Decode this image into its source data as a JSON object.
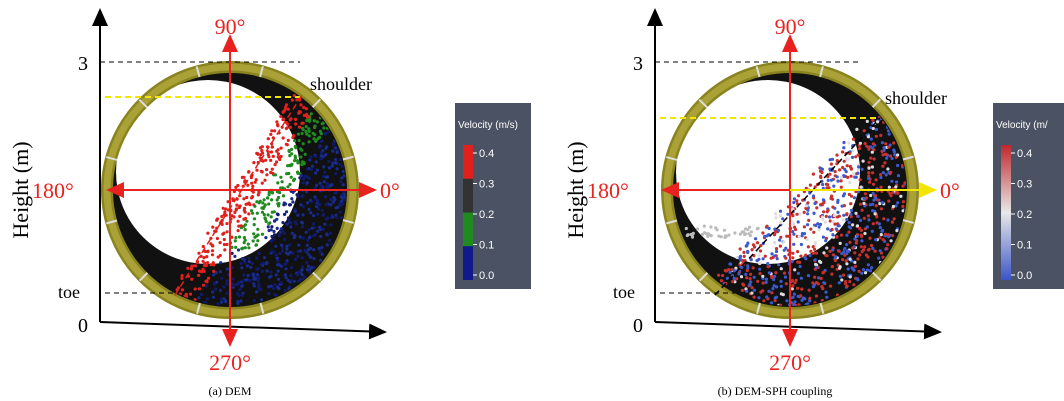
{
  "panels": [
    {
      "caption": "(a) DEM",
      "y_axis_label": "Height (m)",
      "angle_labels": {
        "top": "90°",
        "left": "180°",
        "right": "0°",
        "bottom": "270°"
      },
      "height_ticks": [
        "3",
        "0"
      ],
      "annotations": [
        "shoulder",
        "toe"
      ],
      "colorbar": {
        "title": "Velocity (m/s)",
        "ticks": [
          "0.4",
          "0.3",
          "0.2",
          "0.1",
          "0.0"
        ]
      }
    },
    {
      "caption": "(b) DEM-SPH coupling",
      "y_axis_label": "Height (m)",
      "angle_labels": {
        "top": "90°",
        "left": "180°",
        "right": "0°",
        "bottom": "270°"
      },
      "height_ticks": [
        "3",
        "0"
      ],
      "annotations": [
        "shoulder",
        "toe"
      ],
      "colorbar": {
        "title": "Velocity (m/",
        "ticks": [
          "0.4",
          "0.3",
          "0.2",
          "0.1",
          "0.0"
        ]
      }
    }
  ]
}
